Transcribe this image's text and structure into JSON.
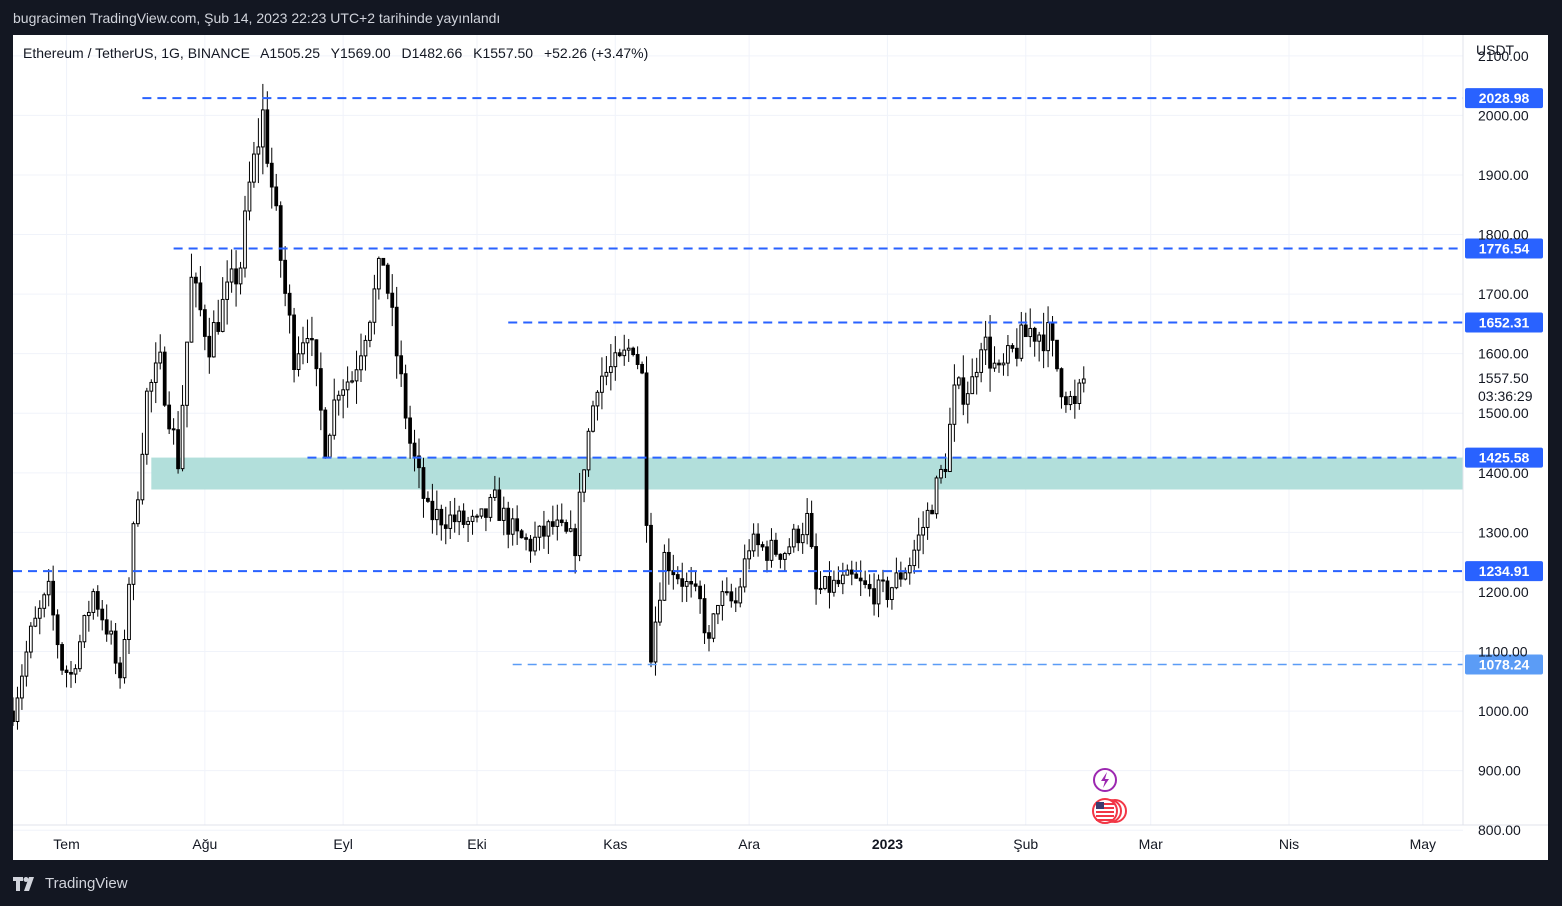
{
  "publisher_line": "bugracimen TradingView.com, Şub 14, 2023 22:23 UTC+2 tarihinde yayınlandı",
  "legend": {
    "symbol": "Ethereum / TetherUS, 1G, BINANCE",
    "open": "A1505.25",
    "high": "Y1569.00",
    "low": "D1482.66",
    "close": "K1557.50",
    "change": "+52.26 (+3.47%)"
  },
  "footer": {
    "brand": "TradingView"
  },
  "colors": {
    "background_dark": "#131722",
    "panel": "#ffffff",
    "candle": "#000000",
    "level_line": "#2962ff",
    "level_tag": "#2962ff",
    "level_tag_light": "#5b9cf6",
    "zone": "#b2dfdb",
    "grid": "#f0f3fa",
    "event_lightning": "#9c27b0",
    "event_flag_red": "#f23645"
  },
  "icons": {
    "events": [
      "lightning-icon",
      "us-flag-icon"
    ],
    "logo": "tradingview-logo-icon"
  },
  "chart_data": {
    "type": "candlestick",
    "currency_label": "USDT",
    "ylim": [
      750,
      2135
    ],
    "y_ticks": [
      "2100.00",
      "2000.00",
      "1900.00",
      "1800.00",
      "1700.00",
      "1600.00",
      "1500.00",
      "1400.00",
      "1300.00",
      "1200.00",
      "1100.00",
      "1000.00",
      "900.00",
      "800.00"
    ],
    "y_tick_values": [
      2100,
      2000,
      1900,
      1800,
      1700,
      1600,
      1500,
      1400,
      1300,
      1200,
      1100,
      1000,
      900,
      800
    ],
    "x_range": [
      "2022-06-19",
      "2023-05-10"
    ],
    "x_ticks": [
      {
        "label": "Tem",
        "date": "2022-07-01",
        "bold": false
      },
      {
        "label": "Ağu",
        "date": "2022-08-01",
        "bold": false
      },
      {
        "label": "Eyl",
        "date": "2022-09-01",
        "bold": false
      },
      {
        "label": "Eki",
        "date": "2022-10-01",
        "bold": false
      },
      {
        "label": "Kas",
        "date": "2022-11-01",
        "bold": false
      },
      {
        "label": "Ara",
        "date": "2022-12-01",
        "bold": false
      },
      {
        "label": "2023",
        "date": "2023-01-01",
        "bold": true
      },
      {
        "label": "Şub",
        "date": "2023-02-01",
        "bold": false
      },
      {
        "label": "Mar",
        "date": "2023-03-01",
        "bold": false
      },
      {
        "label": "Nis",
        "date": "2023-04-01",
        "bold": false
      },
      {
        "label": "May",
        "date": "2023-05-01",
        "bold": false
      }
    ],
    "horizontal_levels": [
      {
        "value": 2028.98,
        "label": "2028.98",
        "from": "2022-07-18",
        "tag": "dark"
      },
      {
        "value": 1776.54,
        "label": "1776.54",
        "from": "2022-07-25",
        "tag": "dark"
      },
      {
        "value": 1652.31,
        "label": "1652.31",
        "from": "2022-10-08",
        "tag": "dark"
      },
      {
        "value": 1425.58,
        "label": "1425.58",
        "from": "2022-08-24",
        "tag": "dark"
      },
      {
        "value": 1234.91,
        "label": "1234.91",
        "from": "2022-06-19",
        "tag": "dark"
      },
      {
        "value": 1078.24,
        "label": "1078.24",
        "from": "2022-10-09",
        "tag": "light"
      }
    ],
    "zone": {
      "from": "2022-07-20",
      "top": 1425.58,
      "bottom": 1372
    },
    "current_price": {
      "value": 1557.5,
      "label": "1557.50",
      "countdown": "03:36:29"
    },
    "anchors": [
      [
        "2022-06-19",
        1000
      ],
      [
        "2022-06-23",
        1130
      ],
      [
        "2022-06-27",
        1200
      ],
      [
        "2022-06-30",
        1075
      ],
      [
        "2022-07-02",
        1060
      ],
      [
        "2022-07-07",
        1200
      ],
      [
        "2022-07-11",
        1120
      ],
      [
        "2022-07-13",
        1040
      ],
      [
        "2022-07-15",
        1220
      ],
      [
        "2022-07-19",
        1530
      ],
      [
        "2022-07-22",
        1580
      ],
      [
        "2022-07-26",
        1420
      ],
      [
        "2022-07-29",
        1720
      ],
      [
        "2022-08-02",
        1620
      ],
      [
        "2022-08-05",
        1680
      ],
      [
        "2022-08-09",
        1750
      ],
      [
        "2022-08-11",
        1880
      ],
      [
        "2022-08-14",
        2000
      ],
      [
        "2022-08-16",
        1880
      ],
      [
        "2022-08-19",
        1700
      ],
      [
        "2022-08-21",
        1600
      ],
      [
        "2022-08-24",
        1650
      ],
      [
        "2022-08-28",
        1450
      ],
      [
        "2022-08-31",
        1550
      ],
      [
        "2022-09-03",
        1560
      ],
      [
        "2022-09-08",
        1700
      ],
      [
        "2022-09-10",
        1760
      ],
      [
        "2022-09-13",
        1600
      ],
      [
        "2022-09-16",
        1450
      ],
      [
        "2022-09-20",
        1330
      ],
      [
        "2022-09-24",
        1325
      ],
      [
        "2022-10-01",
        1310
      ],
      [
        "2022-10-05",
        1350
      ],
      [
        "2022-10-10",
        1290
      ],
      [
        "2022-10-13",
        1280
      ],
      [
        "2022-10-18",
        1310
      ],
      [
        "2022-10-23",
        1280
      ],
      [
        "2022-10-25",
        1420
      ],
      [
        "2022-10-28",
        1560
      ],
      [
        "2022-11-02",
        1580
      ],
      [
        "2022-11-05",
        1620
      ],
      [
        "2022-11-07",
        1560
      ],
      [
        "2022-11-08",
        1335
      ],
      [
        "2022-11-09",
        1100
      ],
      [
        "2022-11-12",
        1260
      ],
      [
        "2022-11-16",
        1220
      ],
      [
        "2022-11-20",
        1180
      ],
      [
        "2022-11-22",
        1110
      ],
      [
        "2022-11-24",
        1190
      ],
      [
        "2022-11-28",
        1180
      ],
      [
        "2022-12-01",
        1280
      ],
      [
        "2022-12-05",
        1270
      ],
      [
        "2022-12-09",
        1270
      ],
      [
        "2022-12-14",
        1320
      ],
      [
        "2022-12-16",
        1200
      ],
      [
        "2022-12-20",
        1210
      ],
      [
        "2022-12-24",
        1220
      ],
      [
        "2022-12-28",
        1200
      ],
      [
        "2023-01-01",
        1200
      ],
      [
        "2023-01-06",
        1250
      ],
      [
        "2023-01-10",
        1330
      ],
      [
        "2023-01-14",
        1420
      ],
      [
        "2023-01-16",
        1530
      ],
      [
        "2023-01-20",
        1550
      ],
      [
        "2023-01-22",
        1630
      ],
      [
        "2023-01-26",
        1560
      ],
      [
        "2023-01-29",
        1600
      ],
      [
        "2023-02-02",
        1640
      ],
      [
        "2023-02-06",
        1630
      ],
      [
        "2023-02-09",
        1550
      ],
      [
        "2023-02-12",
        1505
      ],
      [
        "2023-02-14",
        1557.5
      ]
    ]
  }
}
